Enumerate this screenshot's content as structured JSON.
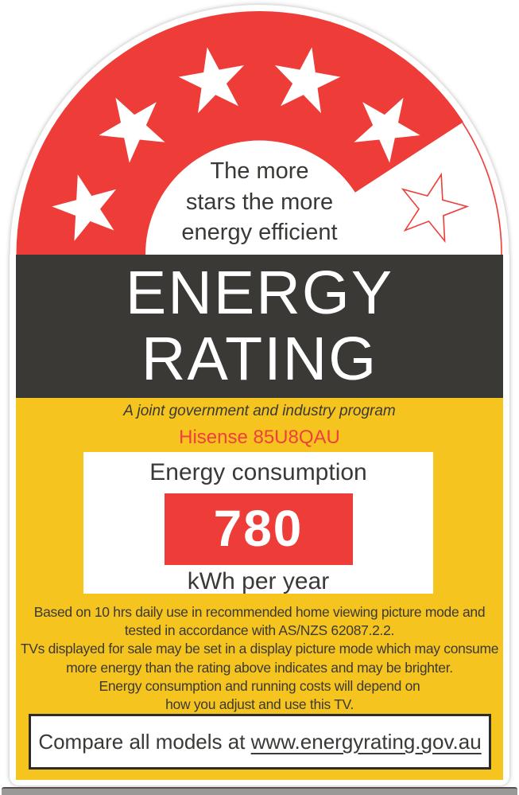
{
  "label": {
    "header": {
      "tagline_lines": [
        "The more",
        "stars the more",
        "energy efficient"
      ],
      "stars_total": 6,
      "stars_filled": 5
    },
    "title_line1": "ENERGY",
    "title_line2": "RATING",
    "program_note": "A joint government and industry program",
    "model": "Hisense 85U8QAU",
    "consumption": {
      "title": "Energy consumption",
      "value": "780",
      "unit_label": "kWh per year"
    },
    "fine_print_lines": [
      "Based on 10 hrs daily use in recommended home viewing picture mode and",
      "tested in accordance with AS/NZS 62087.2.2.",
      "TVs displayed for sale may be set in a display picture mode which may consume",
      "more energy than the rating above indicates and may be brighter.",
      "Energy consumption and running costs will depend on",
      "how you adjust and use this TV."
    ],
    "compare": {
      "prefix": "Compare all models at ",
      "url": "www.energyrating.gov.au"
    },
    "colors": {
      "red": "#EE3D38",
      "dark_band": "#3B3936",
      "yellow": "#F5C41E",
      "model_red": "#EF4040"
    }
  }
}
